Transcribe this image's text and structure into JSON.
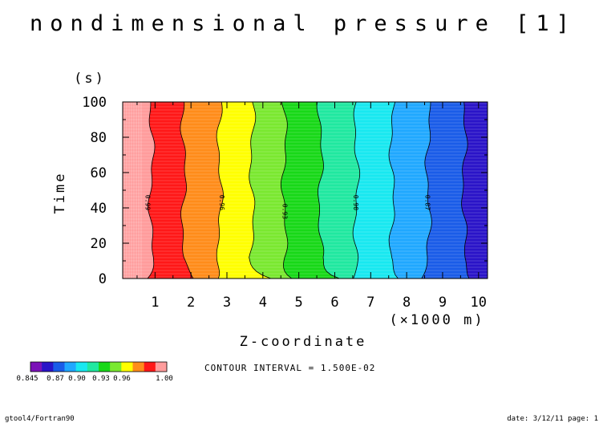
{
  "chart_data": {
    "type": "heatmap",
    "title": "nondimensional pressure [1]",
    "xlabel": "Z-coordinate",
    "x_unit": "(×1000 m)",
    "ylabel": "Time",
    "y_unit": "(s)",
    "xlim": [
      0.1,
      10.25
    ],
    "ylim": [
      0,
      100
    ],
    "x_ticks": [
      "1",
      "2",
      "3",
      "4",
      "5",
      "6",
      "7",
      "8",
      "9",
      "10"
    ],
    "y_ticks": [
      "0",
      "20",
      "40",
      "60",
      "80",
      "100"
    ],
    "colorbar": {
      "colors": [
        "#7b12b8",
        "#2a14c8",
        "#1a5ce8",
        "#20a8ff",
        "#18e8f0",
        "#20e8a0",
        "#18d818",
        "#7ae830",
        "#ffff00",
        "#ff8c1a",
        "#ff1818",
        "#ff9c9c"
      ],
      "labels": [
        "0.845",
        "0.87",
        "0.90",
        "0.93",
        "0.96",
        "1.00"
      ]
    },
    "contour_interval": "CONTOUR INTERVAL = 1.500E-02",
    "contour_labels": [
      "0.99",
      "0.96",
      "0.93",
      "0.90",
      "0.87"
    ],
    "approx_band_boundaries_km": [
      0.9,
      1.8,
      2.8,
      3.7,
      4.6,
      5.6,
      6.6,
      7.6,
      8.6,
      9.6
    ],
    "approx_band_values": [
      1.0,
      0.99,
      0.975,
      0.96,
      0.945,
      0.93,
      0.915,
      0.9,
      0.885,
      0.87,
      0.855,
      0.845
    ]
  },
  "footer": {
    "left": "gtool4/Fortran90",
    "right": "date: 3/12/11 page: 1"
  }
}
